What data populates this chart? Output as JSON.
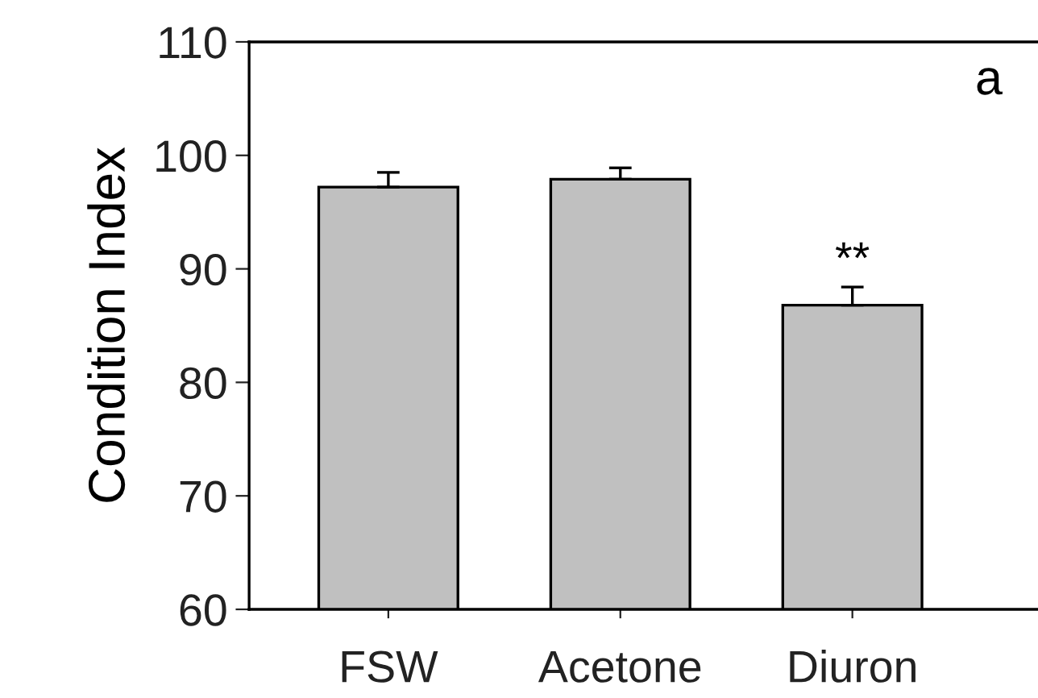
{
  "chart_data": {
    "type": "bar",
    "ylabel": "Condition Index",
    "categories": [
      "FSW",
      "Acetone",
      "Diuron"
    ],
    "values": [
      97.2,
      97.9,
      86.8
    ],
    "errors": [
      1.3,
      1.0,
      1.6
    ],
    "color": "#c0c0c0",
    "ylim": [
      60,
      110
    ],
    "yticks": [
      60,
      70,
      80,
      90,
      100,
      110
    ],
    "grid": false,
    "annotations": [
      "a",
      {
        "text": "**",
        "x": "Diuron",
        "y": 88.4
      }
    ]
  }
}
